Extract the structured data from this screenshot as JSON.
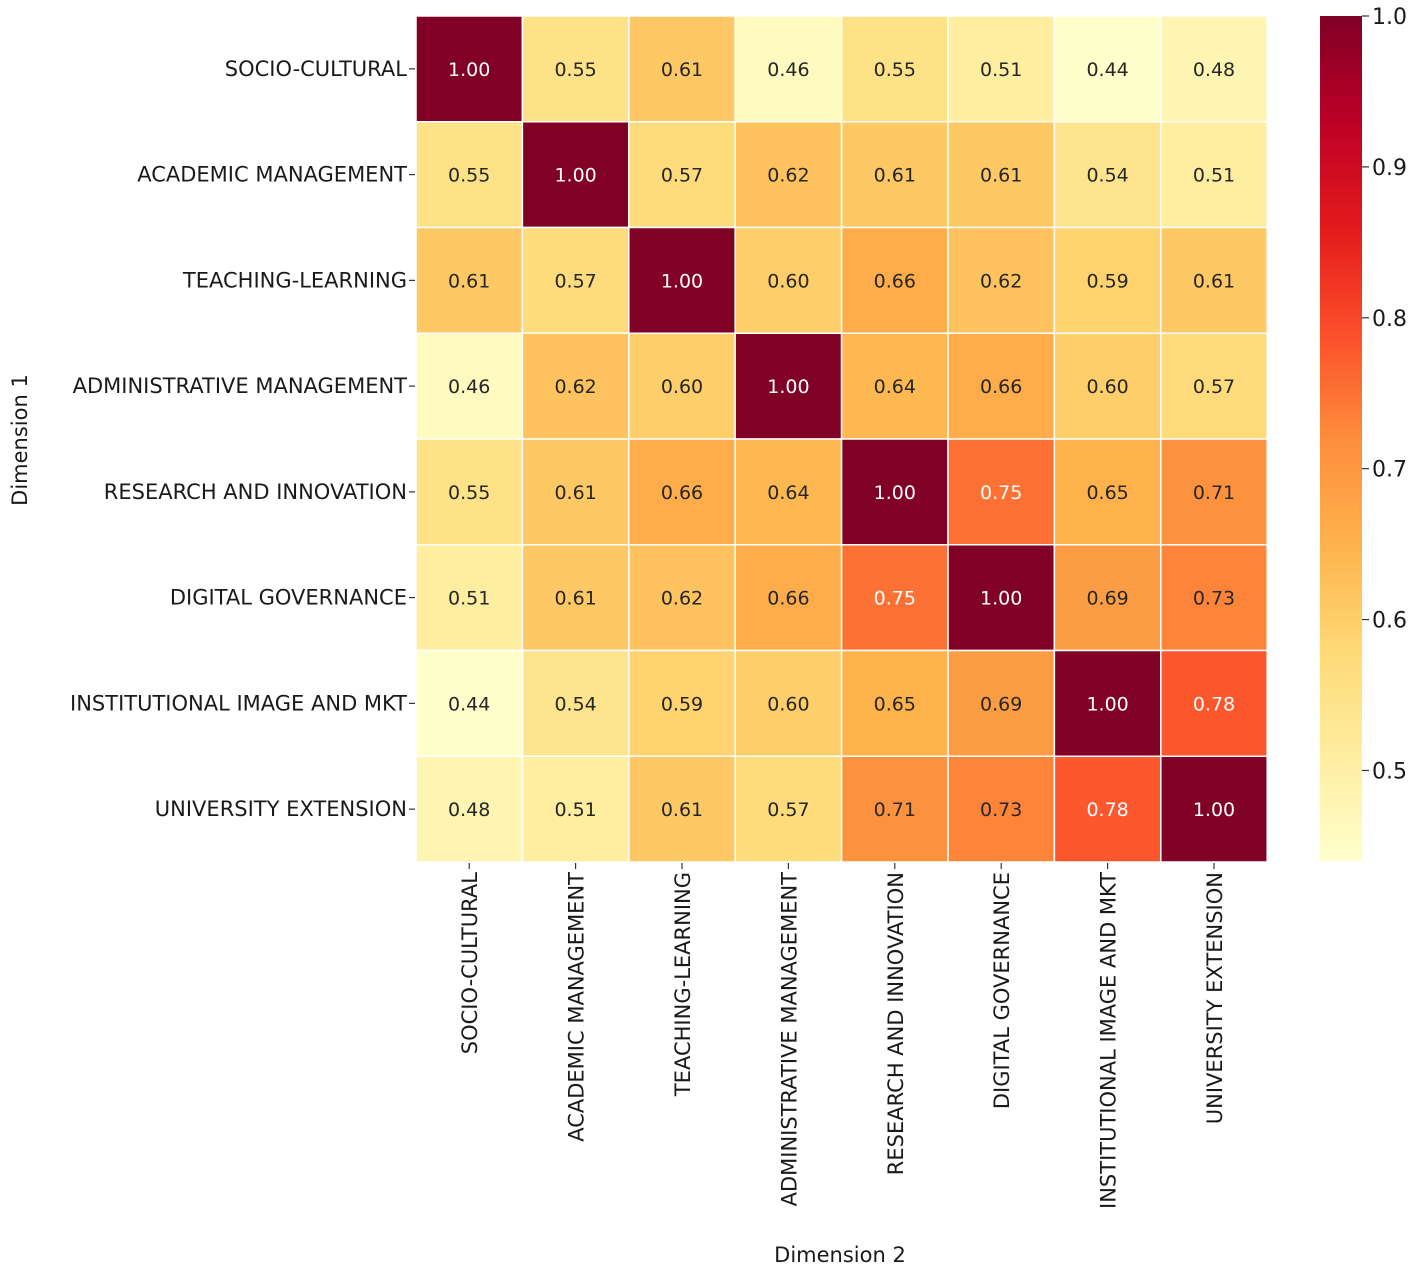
{
  "chart_data": {
    "type": "heatmap",
    "title": "",
    "xlabel": "Dimension 2",
    "ylabel": "Dimension 1",
    "x_categories": [
      "SOCIO-CULTURAL",
      "ACADEMIC MANAGEMENT",
      "TEACHING-LEARNING",
      "ADMINISTRATIVE MANAGEMENT",
      "RESEARCH AND INNOVATION",
      "DIGITAL GOVERNANCE",
      "INSTITUTIONAL IMAGE AND MKT",
      "UNIVERSITY EXTENSION"
    ],
    "y_categories": [
      "SOCIO-CULTURAL",
      "ACADEMIC MANAGEMENT",
      "TEACHING-LEARNING",
      "ADMINISTRATIVE MANAGEMENT",
      "RESEARCH AND INNOVATION",
      "DIGITAL GOVERNANCE",
      "INSTITUTIONAL IMAGE AND MKT",
      "UNIVERSITY EXTENSION"
    ],
    "values": [
      [
        1.0,
        0.55,
        0.61,
        0.46,
        0.55,
        0.51,
        0.44,
        0.48
      ],
      [
        0.55,
        1.0,
        0.57,
        0.62,
        0.61,
        0.61,
        0.54,
        0.51
      ],
      [
        0.61,
        0.57,
        1.0,
        0.6,
        0.66,
        0.62,
        0.59,
        0.61
      ],
      [
        0.46,
        0.62,
        0.6,
        1.0,
        0.64,
        0.66,
        0.6,
        0.57
      ],
      [
        0.55,
        0.61,
        0.66,
        0.64,
        1.0,
        0.75,
        0.65,
        0.71
      ],
      [
        0.51,
        0.61,
        0.62,
        0.66,
        0.75,
        1.0,
        0.69,
        0.73
      ],
      [
        0.44,
        0.54,
        0.59,
        0.6,
        0.65,
        0.69,
        1.0,
        0.78
      ],
      [
        0.48,
        0.51,
        0.61,
        0.57,
        0.71,
        0.73,
        0.78,
        1.0
      ]
    ],
    "value_format": "2 decimals",
    "colorbar": {
      "min": 0.44,
      "max": 1.0,
      "ticks": [
        "0.5",
        "0.6",
        "0.7",
        "0.8",
        "0.9",
        "1.0"
      ],
      "colormap": "YlOrRd",
      "stops": [
        "#ffffcc",
        "#ffeda0",
        "#fed976",
        "#feb24c",
        "#fd8d3c",
        "#fc4e2a",
        "#e31a1c",
        "#bd0026",
        "#800026"
      ]
    },
    "grid": true,
    "legend": "colorbar-right"
  }
}
